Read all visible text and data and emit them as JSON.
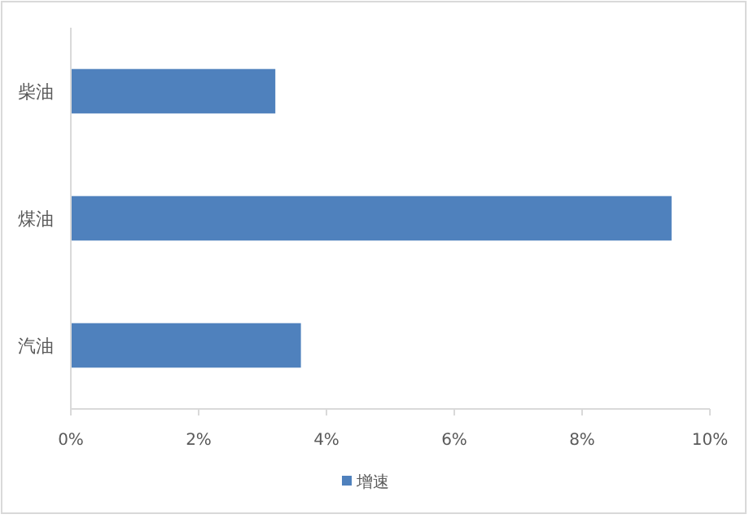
{
  "chart_data": {
    "type": "bar",
    "orientation": "horizontal",
    "categories": [
      "柴油",
      "煤油",
      "汽油"
    ],
    "series": [
      {
        "name": "增速",
        "color": "#4f81bd",
        "values": [
          3.2,
          9.4,
          3.6
        ]
      }
    ],
    "xlim": [
      0,
      10
    ],
    "xticks": [
      {
        "value": 0,
        "label": "0%"
      },
      {
        "value": 2,
        "label": "2%"
      },
      {
        "value": 4,
        "label": "4%"
      },
      {
        "value": 6,
        "label": "6%"
      },
      {
        "value": 8,
        "label": "8%"
      },
      {
        "value": 10,
        "label": "10%"
      }
    ],
    "grid": false,
    "legend": "bottom"
  }
}
